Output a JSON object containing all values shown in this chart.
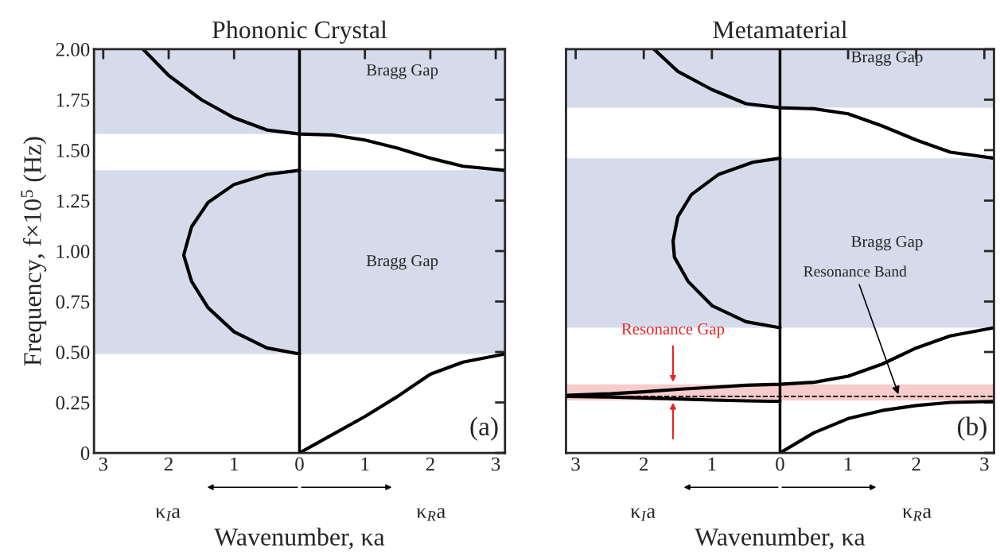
{
  "chart_data": [
    {
      "type": "line",
      "title": "Phononic Crystal",
      "xlabel": "Wavenumber, κa",
      "ylabel": "Frequency, f×10$^{5}$ (Hz)",
      "xlim": [
        -3.1416,
        3.1416
      ],
      "xticks": [
        {
          "value": -3,
          "label": "3"
        },
        {
          "value": -2,
          "label": "2"
        },
        {
          "value": -1,
          "label": "1"
        },
        0,
        1,
        2,
        3
      ],
      "ylim": [
        0,
        2.0
      ],
      "yticks": [
        0,
        0.25,
        {
          "value": 0.5,
          "label": "0.50"
        },
        {
          "value": 0.75,
          "label": "0.75"
        },
        {
          "value": 1.0,
          "label": "1.00"
        },
        1.25,
        {
          "value": 1.5,
          "label": "1.50"
        },
        1.75,
        {
          "value": 2.0,
          "label": "2.00"
        }
      ],
      "bands": [
        {
          "axis": "y",
          "from": 0.49,
          "to": 1.4,
          "label": "Bragg Gap",
          "color": "#d5dbeb"
        },
        {
          "axis": "y",
          "from": 1.58,
          "to": 2.0,
          "label": "Bragg Gap",
          "color": "#d5dbeb"
        }
      ],
      "ref_lines": [
        {
          "axis": "x",
          "value": 0,
          "color": "#000000",
          "line_style": "solid"
        }
      ],
      "series": [
        {
          "color": "#000000",
          "x": [
            0,
            0.5,
            1,
            1.5,
            2,
            2.5,
            3.1416
          ],
          "values": [
            0,
            0.09,
            0.18,
            0.28,
            0.39,
            0.45,
            0.49
          ]
        },
        {
          "color": "#000000",
          "x": [
            0,
            -0.5,
            -1.0,
            -1.4,
            -1.65,
            -1.77,
            -1.65,
            -1.4,
            -1.0,
            -0.5,
            0
          ],
          "values": [
            0.49,
            0.52,
            0.6,
            0.72,
            0.85,
            0.98,
            1.12,
            1.24,
            1.33,
            1.38,
            1.4
          ]
        },
        {
          "color": "#000000",
          "x": [
            -2.39,
            -2,
            -1.5,
            -1,
            -0.5,
            0,
            0.5,
            1,
            1.5,
            2,
            2.5,
            3.1416
          ],
          "values": [
            2.0,
            1.87,
            1.75,
            1.66,
            1.6,
            1.58,
            1.575,
            1.55,
            1.51,
            1.46,
            1.42,
            1.4
          ]
        }
      ],
      "annotations": [
        "(a)",
        "κ$_{I}$a",
        "κ$_{R}$a"
      ]
    },
    {
      "type": "line",
      "title": "Metamaterial",
      "xlabel": "Wavenumber, κa",
      "tick_labels": "x",
      "xlim": [
        -3.1416,
        3.1416
      ],
      "xticks": [
        {
          "value": -3,
          "label": "3"
        },
        {
          "value": -2,
          "label": "2"
        },
        {
          "value": -1,
          "label": "1"
        },
        0,
        1,
        2,
        3
      ],
      "ylim": [
        0,
        2.0
      ],
      "yticks": [
        0,
        0.25,
        0.5,
        0.75,
        1.0,
        1.25,
        1.5,
        1.75,
        2.0
      ],
      "bands": [
        {
          "axis": "y",
          "from": 0.62,
          "to": 1.46,
          "label": "Bragg Gap",
          "color": "#d5dbeb"
        },
        {
          "axis": "y",
          "from": 1.71,
          "to": 2.0,
          "label": "Bragg Gap",
          "color": "#d5dbeb"
        },
        {
          "axis": "y",
          "from": 0.26,
          "to": 0.34,
          "label": "Resonance Gap",
          "color": "#f7cccc"
        }
      ],
      "ref_lines": [
        {
          "axis": "x",
          "value": 0,
          "color": "#000000",
          "line_style": "solid"
        },
        {
          "axis": "y",
          "value": 0.28,
          "color": "#000000",
          "line_style": "dashed"
        }
      ],
      "series": [
        {
          "color": "#000000",
          "x": [
            0,
            0.5,
            1,
            1.5,
            2,
            2.5,
            3.1416
          ],
          "values": [
            0,
            0.1,
            0.17,
            0.21,
            0.235,
            0.25,
            0.255
          ]
        },
        {
          "color": "#000000",
          "x": [
            0,
            -0.5,
            -1,
            -1.5,
            -2,
            -2.5,
            -3.1416
          ],
          "values": [
            0.255,
            0.258,
            0.262,
            0.267,
            0.272,
            0.277,
            0.28
          ]
        },
        {
          "color": "#000000",
          "x": [
            -3.1416,
            -2.5,
            -2,
            -1.5,
            -1,
            -0.5,
            0,
            0.5,
            1,
            1.5,
            2,
            2.5,
            3.1416
          ],
          "values": [
            0.285,
            0.293,
            0.303,
            0.315,
            0.325,
            0.335,
            0.34,
            0.35,
            0.38,
            0.44,
            0.52,
            0.58,
            0.62
          ]
        },
        {
          "color": "#000000",
          "x": [
            0,
            -0.5,
            -1.0,
            -1.35,
            -1.55,
            -1.57,
            -1.5,
            -1.3,
            -0.9,
            -0.4,
            0
          ],
          "values": [
            0.62,
            0.65,
            0.73,
            0.85,
            0.97,
            1.05,
            1.17,
            1.28,
            1.38,
            1.44,
            1.46
          ]
        },
        {
          "color": "#000000",
          "x": [
            -1.85,
            -1.5,
            -1,
            -0.5,
            0,
            0.5,
            1,
            1.5,
            2,
            2.5,
            3.1416
          ],
          "values": [
            2.0,
            1.89,
            1.8,
            1.73,
            1.71,
            1.705,
            1.68,
            1.62,
            1.55,
            1.49,
            1.46
          ]
        }
      ],
      "annotations": [
        {
          "text": "Resonance Band",
          "x": 1.75,
          "y": 0.28
        },
        "(b)",
        "κ$_{I}$a",
        "κ$_{R}$a"
      ]
    }
  ]
}
